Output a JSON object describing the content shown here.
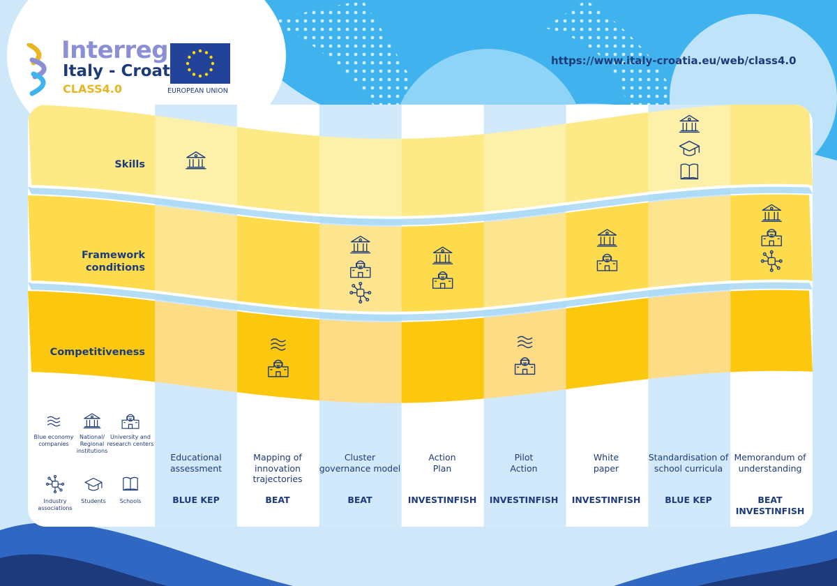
{
  "colors": {
    "navy": "#1d3b7a",
    "skills_light": "#fdeea3",
    "framework_mid": "#fdd94a",
    "competitiveness": "#fcc70f",
    "pale_blue": "#d2e9fb"
  },
  "header": {
    "brand_name": "Interreg",
    "program": "Italy - Croatia",
    "project": "CLASS4.0",
    "eu_label": "EUROPEAN UNION",
    "url": "https://www.italy-croatia.eu/web/class4.0"
  },
  "rows": [
    {
      "label": "Skills"
    },
    {
      "label": "Framework conditions"
    },
    {
      "label": "Competitiveness"
    }
  ],
  "legend": [
    {
      "icon": "waves-icon",
      "label": "Blue economy companies"
    },
    {
      "icon": "institution-icon",
      "label": "National/ Regional institutions"
    },
    {
      "icon": "university-icon",
      "label": "University and research centers"
    },
    {
      "icon": "network-icon",
      "label": "Industry associations"
    },
    {
      "icon": "graduation-cap-icon",
      "label": "Students"
    },
    {
      "icon": "book-icon",
      "label": "Schools"
    }
  ],
  "columns": [
    {
      "title": "Educational assessment",
      "project": "BLUE KEP",
      "row": "Skills",
      "icons": [
        "institution-icon"
      ]
    },
    {
      "title": "Mapping of innovation trajectories",
      "project": "BEAT",
      "row": "Competitiveness",
      "icons": [
        "waves-icon",
        "university-icon"
      ]
    },
    {
      "title": "Cluster governance model",
      "project": "BEAT",
      "row": "Framework conditions",
      "icons": [
        "institution-icon",
        "university-icon",
        "network-icon"
      ]
    },
    {
      "title": "Action Plan",
      "project": "INVESTINFISH",
      "row": "Framework conditions",
      "icons": [
        "institution-icon",
        "university-icon"
      ]
    },
    {
      "title": "Pilot Action",
      "project": "INVESTINFISH",
      "row": "Competitiveness",
      "icons": [
        "waves-icon",
        "university-icon"
      ]
    },
    {
      "title": "White paper",
      "project": "INVESTINFISH",
      "row": "Framework conditions",
      "icons": [
        "institution-icon",
        "university-icon"
      ]
    },
    {
      "title": "Standardisation of school curricula",
      "project": "BLUE KEP",
      "row": "Skills",
      "icons": [
        "institution-icon",
        "graduation-cap-icon",
        "book-icon"
      ]
    },
    {
      "title": "Memorandum of understanding",
      "project": "BEAT INVESTINFISH",
      "row": "Framework conditions",
      "icons": [
        "institution-icon",
        "university-icon",
        "network-icon"
      ]
    }
  ]
}
